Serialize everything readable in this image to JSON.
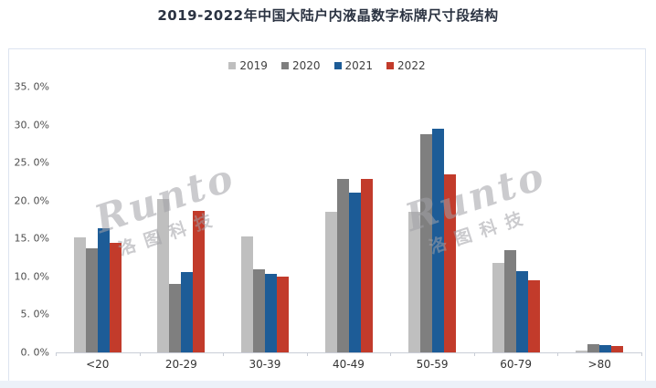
{
  "title": "2019-2022年中国大陆户内液晶数字标牌尺寸段结构",
  "watermark": {
    "brand": "Runto",
    "cn": "洛图科技"
  },
  "colors": {
    "series_2019": "#bfbfbf",
    "series_2020": "#7f7f7f",
    "series_2021": "#1d5c97",
    "series_2022": "#c23b2b",
    "axis_line": "#c9cdd6",
    "box_border": "#dde4f0",
    "title_text": "#2b3342"
  },
  "chart_data": {
    "type": "bar",
    "title": "2019-2022年中国大陆户内液晶数字标牌尺寸段结构",
    "categories": [
      "<20",
      "20-29",
      "30-39",
      "40-49",
      "50-59",
      "60-79",
      ">80"
    ],
    "series": [
      {
        "name": "2019",
        "color": "#bfbfbf",
        "values": [
          15.2,
          20.2,
          15.3,
          18.5,
          18.5,
          11.8,
          0.2
        ]
      },
      {
        "name": "2020",
        "color": "#7f7f7f",
        "values": [
          13.7,
          9.0,
          11.0,
          22.8,
          28.7,
          13.5,
          1.1
        ]
      },
      {
        "name": "2021",
        "color": "#1d5c97",
        "values": [
          16.3,
          10.6,
          10.4,
          21.0,
          29.5,
          10.7,
          1.0
        ]
      },
      {
        "name": "2022",
        "color": "#c23b2b",
        "values": [
          14.4,
          18.6,
          10.0,
          22.9,
          23.5,
          9.5,
          0.8
        ]
      }
    ],
    "xlabel": "",
    "ylabel": "",
    "ylim": [
      0,
      35
    ],
    "ytick_step": 5,
    "ytick_labels": [
      "0. 0%",
      "5. 0%",
      "10. 0%",
      "15. 0%",
      "20. 0%",
      "25. 0%",
      "30. 0%",
      "35. 0%"
    ],
    "grid": false,
    "legend_position": "top-center"
  }
}
